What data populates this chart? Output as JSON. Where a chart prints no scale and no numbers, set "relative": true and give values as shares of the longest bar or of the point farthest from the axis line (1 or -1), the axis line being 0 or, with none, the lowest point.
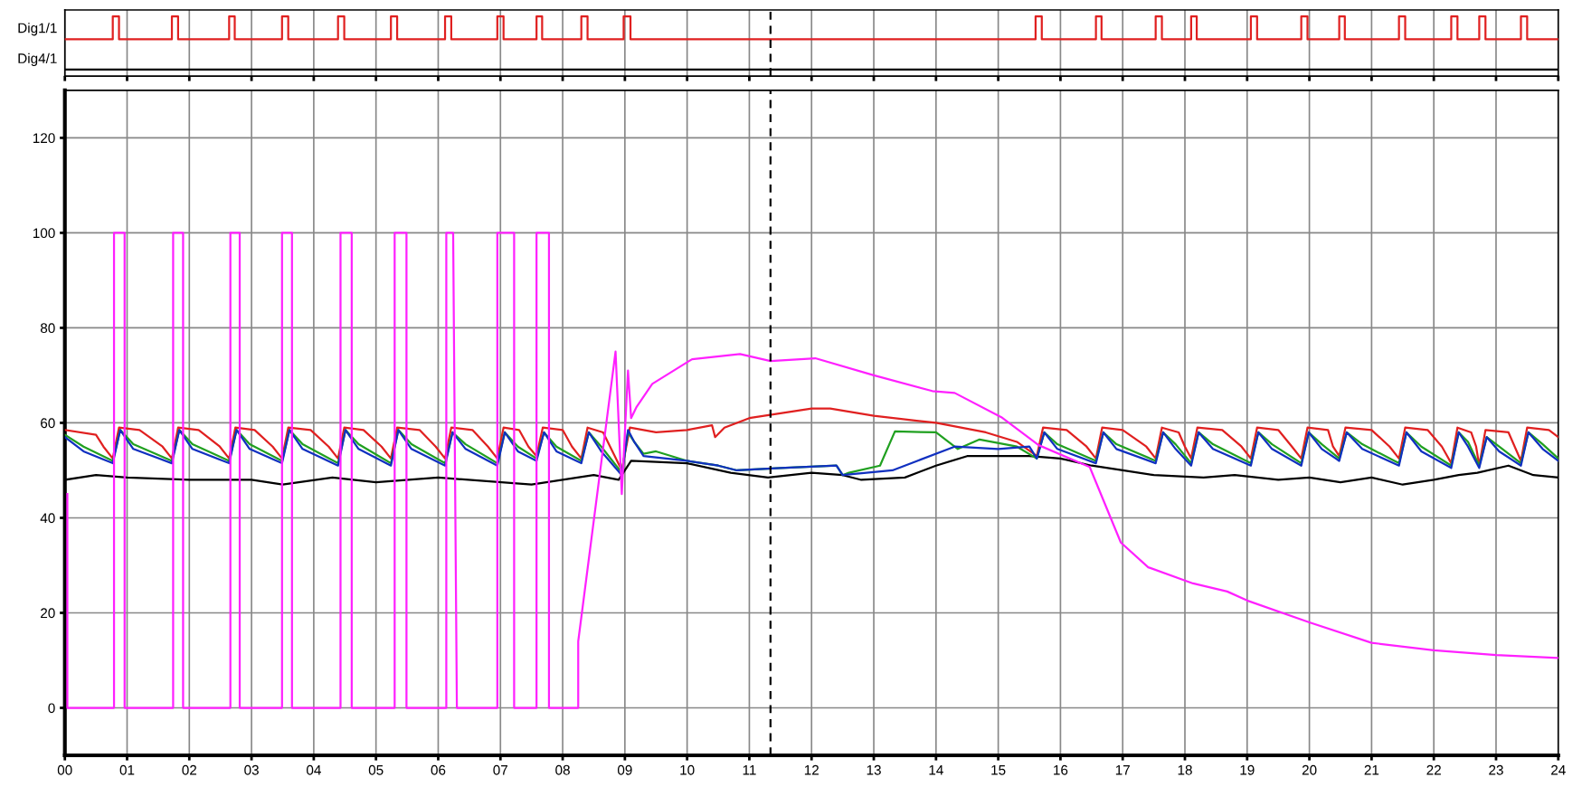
{
  "chart_data": [
    {
      "type": "line",
      "xlim": [
        0,
        24
      ],
      "xticks": [
        0,
        1,
        2,
        3,
        4,
        5,
        6,
        7,
        8,
        9,
        10,
        11,
        12,
        13,
        14,
        15,
        16,
        17,
        18,
        19,
        20,
        21,
        22,
        23,
        24
      ],
      "relative": true,
      "annotations": [
        "Dig1/1",
        "Dig4/1"
      ],
      "tick_labels": false,
      "grid": "x",
      "ref_lines": [
        {
          "axis": "x",
          "value": 11.34,
          "color": "#000000",
          "line_style": "dashed"
        }
      ],
      "series": [
        {
          "color": "#e02020",
          "x": [
            0,
            0.77,
            0.77,
            0.87,
            0.87,
            1.72,
            1.72,
            1.82,
            1.82,
            2.64,
            2.64,
            2.73,
            2.73,
            3.49,
            3.49,
            3.59,
            3.59,
            4.39,
            4.39,
            4.49,
            4.49,
            5.24,
            5.24,
            5.34,
            5.34,
            6.11,
            6.11,
            6.21,
            6.21,
            6.95,
            6.95,
            7.05,
            7.05,
            7.58,
            7.58,
            7.67,
            7.67,
            8.3,
            8.3,
            8.4,
            8.4,
            8.98,
            8.98,
            9.09,
            9.09,
            15.6,
            15.6,
            15.7,
            15.7,
            16.57,
            16.57,
            16.66,
            16.66,
            17.53,
            17.53,
            17.63,
            17.63,
            18.1,
            18.1,
            18.19,
            18.19,
            19.06,
            19.06,
            19.16,
            19.16,
            19.87,
            19.87,
            19.97,
            19.97,
            20.48,
            20.48,
            20.57,
            20.57,
            21.44,
            21.44,
            21.54,
            21.54,
            22.28,
            22.28,
            22.38,
            22.38,
            22.73,
            22.73,
            22.83,
            22.83,
            23.4,
            23.4,
            23.5,
            23.5,
            24
          ],
          "values": [
            0.57,
            0.57,
            1,
            1,
            0.57,
            0.57,
            1,
            1,
            0.57,
            0.57,
            1,
            1,
            0.57,
            0.57,
            1,
            1,
            0.57,
            0.57,
            1,
            1,
            0.57,
            0.57,
            1,
            1,
            0.57,
            0.57,
            1,
            1,
            0.57,
            0.57,
            1,
            1,
            0.57,
            0.57,
            1,
            1,
            0.57,
            0.57,
            1,
            1,
            0.57,
            0.57,
            1,
            1,
            0.57,
            0.57,
            1,
            1,
            0.57,
            0.57,
            1,
            1,
            0.57,
            0.57,
            1,
            1,
            0.57,
            0.57,
            1,
            1,
            0.57,
            0.57,
            1,
            1,
            0.57,
            0.57,
            1,
            1,
            0.57,
            0.57,
            1,
            1,
            0.57,
            0.57,
            1,
            1,
            0.57,
            0.57,
            1,
            1,
            0.57,
            0.57,
            1,
            1,
            0.57,
            0.57,
            1,
            1,
            0.57,
            0.57
          ]
        },
        {
          "color": "#000000",
          "x": [
            0,
            24
          ],
          "values": [
            0,
            0
          ]
        }
      ]
    },
    {
      "type": "line",
      "xlim": [
        0,
        24
      ],
      "xticks": [
        {
          "value": 0,
          "label": "00"
        },
        {
          "value": 1,
          "label": "01"
        },
        {
          "value": 2,
          "label": "02"
        },
        {
          "value": 3,
          "label": "03"
        },
        {
          "value": 4,
          "label": "04"
        },
        {
          "value": 5,
          "label": "05"
        },
        {
          "value": 6,
          "label": "06"
        },
        {
          "value": 7,
          "label": "07"
        },
        {
          "value": 8,
          "label": "08"
        },
        {
          "value": 9,
          "label": "09"
        },
        10,
        11,
        12,
        13,
        14,
        15,
        16,
        17,
        18,
        19,
        20,
        21,
        22,
        23,
        24
      ],
      "ylim": [
        -10,
        130
      ],
      "yticks": [
        0,
        20,
        40,
        60,
        80,
        100,
        120
      ],
      "grid": true,
      "ref_lines": [
        {
          "axis": "x",
          "value": 11.34,
          "color": "#000000",
          "line_style": "dashed"
        }
      ],
      "series": [
        {
          "color": "#000000",
          "x": [
            0,
            0.5,
            1,
            2,
            3,
            3.5,
            4.3,
            5,
            6,
            7.5,
            8,
            8.5,
            8.9,
            9.1,
            10,
            10.7,
            11.3,
            12,
            12.5,
            12.8,
            13.5,
            14,
            14.5,
            15.5,
            16,
            16.5,
            17,
            17.5,
            18.3,
            18.8,
            19.5,
            20,
            20.5,
            21,
            21.5,
            22,
            22.4,
            22.7,
            23.2,
            23.6,
            24
          ],
          "values": [
            48,
            49,
            48.5,
            48,
            48,
            47,
            48.5,
            47.5,
            48.5,
            47,
            48,
            49,
            48,
            52,
            51.5,
            49.5,
            48.5,
            49.5,
            49,
            48,
            48.5,
            51,
            53,
            53,
            52.5,
            51,
            50,
            49,
            48.5,
            49,
            48,
            48.5,
            47.5,
            48.5,
            47,
            48,
            49,
            49.5,
            51,
            49,
            48.5
          ]
        },
        {
          "color": "#e02020",
          "x": [
            0,
            0.5,
            0.62,
            0.77,
            0.87,
            1.2,
            1.57,
            1.72,
            1.82,
            2.15,
            2.49,
            2.64,
            2.74,
            3.05,
            3.34,
            3.49,
            3.59,
            3.95,
            4.24,
            4.39,
            4.49,
            4.8,
            5.09,
            5.24,
            5.34,
            5.7,
            5.96,
            6.11,
            6.21,
            6.55,
            6.8,
            6.95,
            7.05,
            7.3,
            7.45,
            7.58,
            7.68,
            8.0,
            8.15,
            8.3,
            8.4,
            8.65,
            8.95,
            9.08,
            9.5,
            10.0,
            10.4,
            10.45,
            10.6,
            11.0,
            11.5,
            12.0,
            12.3,
            13.0,
            14.0,
            14.8,
            15.3,
            15.62,
            15.72,
            16.1,
            16.42,
            16.57,
            16.67,
            17.0,
            17.38,
            17.53,
            17.63,
            17.9,
            18.0,
            18.1,
            18.2,
            18.6,
            18.91,
            19.06,
            19.16,
            19.5,
            19.72,
            19.87,
            19.97,
            20.3,
            20.38,
            20.48,
            20.58,
            21.0,
            21.29,
            21.44,
            21.54,
            21.9,
            22.13,
            22.28,
            22.38,
            22.6,
            22.68,
            22.73,
            22.83,
            23.2,
            23.3,
            23.4,
            23.5,
            23.85,
            24
          ],
          "values": [
            58.5,
            57.5,
            55,
            52.5,
            59,
            58.5,
            55,
            52.5,
            59,
            58.5,
            55,
            52.5,
            59,
            58.5,
            55,
            52.5,
            59,
            58.5,
            55,
            52.5,
            59,
            58.5,
            55,
            52.5,
            59,
            58.5,
            55,
            52.5,
            59,
            58.5,
            55,
            52.5,
            59,
            58.5,
            55,
            53,
            59,
            58.5,
            55,
            52.5,
            59,
            58,
            50,
            59,
            58,
            58.5,
            59.5,
            57,
            59,
            61,
            62,
            63,
            63,
            61.5,
            60,
            58,
            56,
            53,
            59,
            58.5,
            55,
            52.5,
            59,
            58.5,
            55,
            52.5,
            59,
            58,
            55,
            52.5,
            59,
            58.5,
            55,
            52.5,
            59,
            58.5,
            55,
            52.5,
            59,
            58.5,
            55,
            53,
            59,
            58.5,
            55,
            52.5,
            59,
            58.5,
            55,
            51.5,
            59,
            58,
            55,
            51,
            58.5,
            58,
            55,
            52,
            59,
            58.5,
            57
          ]
        },
        {
          "color": "#20a020",
          "x": [
            0,
            0.3,
            0.77,
            0.89,
            1.1,
            1.72,
            1.84,
            2.05,
            2.64,
            2.76,
            2.97,
            3.49,
            3.61,
            3.82,
            4.39,
            4.51,
            4.72,
            5.24,
            5.36,
            5.57,
            6.11,
            6.23,
            6.44,
            6.95,
            7.07,
            7.28,
            7.58,
            7.7,
            7.9,
            8.3,
            8.42,
            8.62,
            8.95,
            9.05,
            9.15,
            9.3,
            9.5,
            10,
            10.5,
            10.8,
            11.5,
            12.4,
            12.5,
            12.6,
            13.1,
            13.34,
            14.0,
            14.35,
            14.7,
            15.3,
            15.62,
            15.74,
            15.95,
            16.57,
            16.69,
            16.9,
            17.53,
            17.65,
            17.85,
            18.1,
            18.22,
            18.45,
            19.06,
            19.18,
            19.4,
            19.87,
            19.99,
            20.2,
            20.48,
            20.6,
            20.85,
            21.44,
            21.56,
            21.8,
            22.28,
            22.4,
            22.55,
            22.73,
            22.85,
            23.05,
            23.4,
            23.52,
            23.75,
            24
          ],
          "values": [
            57.5,
            55,
            52,
            58.5,
            55.5,
            52,
            58.5,
            55.5,
            52,
            58.5,
            55.5,
            52,
            58.5,
            55.5,
            51.5,
            58.5,
            55.5,
            51.5,
            58.5,
            55.5,
            51.5,
            58,
            55.5,
            51.5,
            58,
            55,
            52.5,
            58,
            55,
            52,
            58,
            55,
            49.5,
            58,
            56,
            53.5,
            54,
            52,
            51,
            50,
            50.5,
            51,
            49,
            49.5,
            51,
            58.2,
            58,
            54.5,
            56.5,
            55,
            52.5,
            58,
            55.5,
            52,
            58,
            55.5,
            52,
            58,
            55.5,
            51.5,
            58,
            55.5,
            51.5,
            58,
            55.5,
            51.5,
            58,
            55.5,
            52.5,
            58,
            55.5,
            51.5,
            58,
            55,
            51,
            58,
            56,
            51,
            57,
            55,
            51.5,
            58,
            55.5,
            52.5
          ]
        },
        {
          "color": "#1030c0",
          "x": [
            0,
            0.3,
            0.77,
            0.89,
            1.1,
            1.72,
            1.84,
            2.05,
            2.64,
            2.76,
            2.97,
            3.49,
            3.61,
            3.82,
            4.39,
            4.51,
            4.72,
            5.24,
            5.36,
            5.57,
            6.11,
            6.23,
            6.44,
            6.95,
            7.07,
            7.28,
            7.58,
            7.7,
            7.9,
            8.3,
            8.42,
            8.62,
            8.95,
            9.05,
            9.15,
            9.3,
            10,
            10.5,
            10.8,
            11.5,
            12.4,
            12.5,
            13.3,
            13.7,
            14.3,
            15.0,
            15.5,
            15.62,
            15.74,
            15.95,
            16.57,
            16.69,
            16.9,
            17.53,
            17.65,
            17.85,
            18.1,
            18.22,
            18.45,
            19.06,
            19.18,
            19.4,
            19.87,
            19.99,
            20.2,
            20.48,
            20.6,
            20.85,
            21.44,
            21.56,
            21.8,
            22.28,
            22.4,
            22.55,
            22.73,
            22.85,
            23.05,
            23.4,
            23.52,
            23.75,
            24
          ],
          "values": [
            57,
            54,
            51.5,
            58.5,
            54.5,
            51.5,
            58.5,
            54.5,
            51.5,
            58.5,
            54.5,
            51.5,
            58.5,
            54.5,
            51,
            58.5,
            54.5,
            51,
            58.5,
            54.5,
            51,
            58,
            54.5,
            51,
            58,
            54,
            52,
            58,
            54,
            51.5,
            58,
            54,
            49,
            58.5,
            56,
            53,
            52,
            51,
            50,
            50.5,
            51,
            49,
            50,
            52,
            55,
            54.5,
            55,
            52.5,
            58,
            54.5,
            51.5,
            58,
            54.5,
            51.5,
            58,
            54.5,
            51,
            58,
            54.5,
            51,
            58,
            54.5,
            51,
            58,
            54.5,
            52,
            58,
            54.5,
            51,
            58,
            54,
            50.5,
            58,
            55,
            50.5,
            57,
            54,
            51,
            58,
            54.5,
            52
          ]
        },
        {
          "color": "#ff20ff",
          "x": [
            0.04,
            0.04,
            0.79,
            0.79,
            0.96,
            0.96,
            1.74,
            1.74,
            1.9,
            1.9,
            2.66,
            2.66,
            2.81,
            2.81,
            3.49,
            3.49,
            3.65,
            3.65,
            4.43,
            4.43,
            4.61,
            4.61,
            5.3,
            5.3,
            5.49,
            5.49,
            6.13,
            6.13,
            6.24,
            6.3,
            6.95,
            6.95,
            7.22,
            7.22,
            7.58,
            7.58,
            7.78,
            7.78,
            8.25,
            8.25,
            8.85,
            8.95,
            9.05,
            9.1,
            9.19,
            9.44,
            10.08,
            10.85,
            11.34,
            12.06,
            13.0,
            13.94,
            14.3,
            15.05,
            15.65,
            16.47,
            16.97,
            17.41,
            18.13,
            18.68,
            19.0,
            20.0,
            21,
            22,
            23,
            24
          ],
          "values": [
            45,
            0,
            0,
            100,
            100,
            0,
            0,
            100,
            100,
            0,
            0,
            100,
            100,
            0,
            0,
            100,
            100,
            0,
            0,
            100,
            100,
            0,
            0,
            100,
            100,
            0,
            0,
            100,
            100,
            0,
            0,
            100,
            100,
            0,
            0,
            100,
            100,
            0,
            0,
            14,
            75,
            45,
            71,
            61,
            63.4,
            68.2,
            73.4,
            74.5,
            73,
            73.6,
            70,
            66.7,
            66.3,
            61.2,
            55.3,
            50.7,
            34.8,
            29.6,
            26.2,
            24.5,
            22.6,
            18.0,
            13.7,
            12.1,
            11.1,
            10.5
          ]
        }
      ]
    }
  ]
}
